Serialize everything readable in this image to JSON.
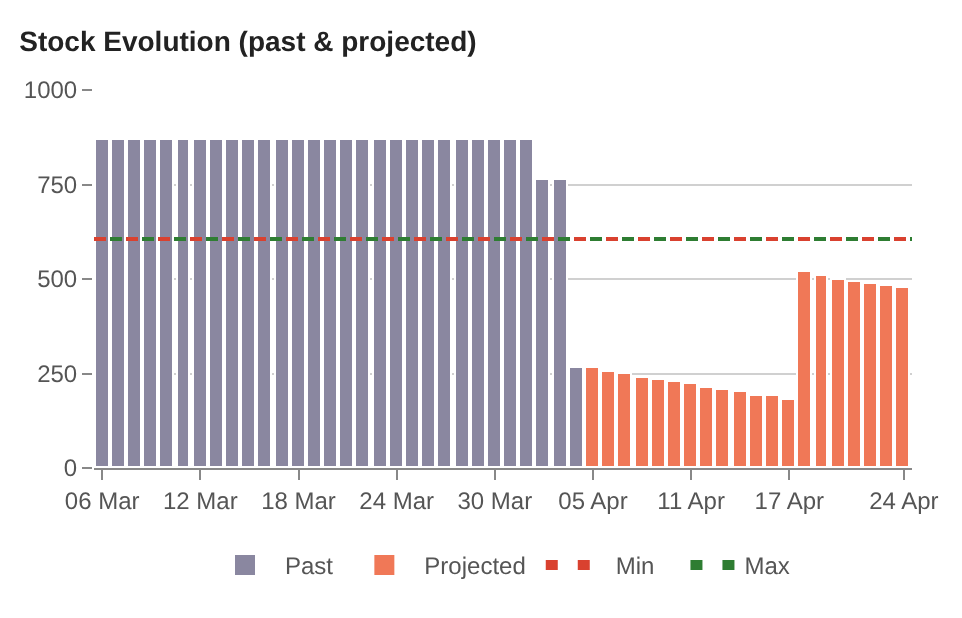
{
  "chart_data": {
    "type": "bar",
    "title": "Stock Evolution (past & projected)",
    "series": [
      {
        "name": "Past",
        "color": "#8a87a0",
        "x": [
          "--03-06",
          "--03-07",
          "--03-08",
          "--03-09",
          "--03-10",
          "--03-11",
          "--03-12",
          "--03-13",
          "--03-14",
          "--03-15",
          "--03-16",
          "--03-17",
          "--03-18",
          "--03-19",
          "--03-20",
          "--03-21",
          "--03-22",
          "--03-23",
          "--03-24",
          "--03-25",
          "--03-26",
          "--03-27",
          "--03-28",
          "--03-29",
          "--03-30",
          "--03-31",
          "--04-01",
          "--04-02",
          "--04-03",
          "--04-04"
        ],
        "values": [
          870,
          870,
          870,
          870,
          870,
          870,
          870,
          870,
          870,
          870,
          870,
          870,
          870,
          870,
          870,
          870,
          870,
          870,
          870,
          870,
          870,
          870,
          870,
          870,
          870,
          870,
          870,
          760,
          760,
          267
        ]
      },
      {
        "name": "Projected",
        "color": "#f07857",
        "x": [
          "--04-05",
          "--04-06",
          "--04-07",
          "--04-08",
          "--04-09",
          "--04-10",
          "--04-11",
          "--04-12",
          "--04-13",
          "--04-14",
          "--04-15",
          "--04-16",
          "--04-17",
          "--04-18",
          "--04-19",
          "--04-20",
          "--04-21",
          "--04-22",
          "--04-23",
          "--04-24"
        ],
        "values": [
          262,
          255,
          248,
          240,
          234,
          227,
          220,
          214,
          207,
          200,
          193,
          188,
          181,
          516,
          507,
          500,
          493,
          488,
          481,
          474
        ]
      }
    ],
    "ref_lines": [
      {
        "axis": "y",
        "value": 606,
        "label": "Max",
        "color": "#2e7d32",
        "line_style": "dashed"
      },
      {
        "axis": "y",
        "value": 606,
        "label": "Min",
        "color": "#d9412f",
        "line_style": "dashed"
      }
    ],
    "xlim": [
      "--03-05T12:00",
      "--04-24T12:00"
    ],
    "xticks": [
      {
        "value": "--03-06",
        "label": "06 Mar"
      },
      {
        "value": "--03-12",
        "label": "12 Mar"
      },
      {
        "value": "--03-18",
        "label": "18 Mar"
      },
      {
        "value": "--03-24",
        "label": "24 Mar"
      },
      {
        "value": "--03-30",
        "label": "30 Mar"
      },
      {
        "value": "--04-05",
        "label": "05 Apr"
      },
      {
        "value": "--04-11",
        "label": "11 Apr"
      },
      {
        "value": "--04-17",
        "label": "17 Apr"
      },
      {
        "value": "--04-24",
        "label": "24 Apr"
      }
    ],
    "ylim": [
      0,
      1000
    ],
    "yticks": [
      0,
      250,
      500,
      750,
      1000
    ],
    "grid": "y",
    "legend": "bottom"
  }
}
